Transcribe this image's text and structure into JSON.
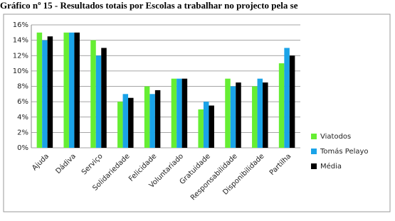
{
  "chart_data": {
    "type": "bar",
    "title": "Gráfico nº 15 - Resultados totais por Escolas a trabalhar no projecto pela se",
    "categories": [
      "Ajuda",
      "Dádiva",
      "Serviço",
      "Solidariedade",
      "Felicidade",
      "Voluntariado",
      "Gratuidade",
      "Responsabilidade",
      "Disponibilidade",
      "Partilha"
    ],
    "series": [
      {
        "name": "Viatodos",
        "color": "#66ee33",
        "values": [
          15,
          15,
          14,
          6,
          8,
          9,
          5,
          9,
          8,
          11
        ]
      },
      {
        "name": "Tomás Pelayo",
        "color": "#1aa3e8",
        "values": [
          14,
          15,
          12,
          7,
          7,
          9,
          6,
          8,
          9,
          13
        ]
      },
      {
        "name": "Média",
        "color": "#000000",
        "values": [
          14.5,
          15,
          13,
          6.5,
          7.5,
          9,
          5.5,
          8.5,
          8.5,
          12
        ]
      }
    ],
    "ylim": [
      0,
      16
    ],
    "yticks": [
      {
        "value": 0,
        "label": "0%"
      },
      {
        "value": 2,
        "label": "2%"
      },
      {
        "value": 4,
        "label": "4%"
      },
      {
        "value": 6,
        "label": "6%"
      },
      {
        "value": 8,
        "label": "8%"
      },
      {
        "value": 10,
        "label": "10%"
      },
      {
        "value": 12,
        "label": "12%"
      },
      {
        "value": 14,
        "label": "14%"
      },
      {
        "value": 16,
        "label": "16%"
      }
    ],
    "grid": true,
    "legend": "right"
  }
}
